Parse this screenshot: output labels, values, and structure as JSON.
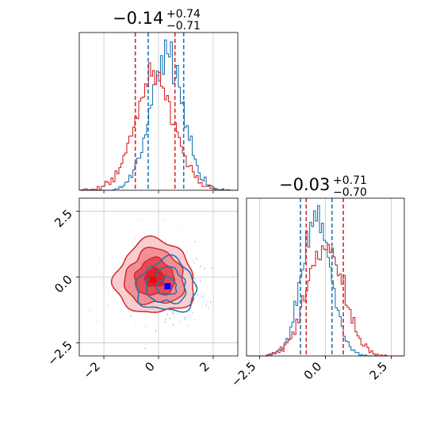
{
  "figure": {
    "type": "corner-plot",
    "colors": {
      "series_a": "#1f77b4",
      "series_b": "#d62728",
      "truth": "#0000ff",
      "truth_b": "#ff0000"
    }
  },
  "chart_data": [
    {
      "type": "histogram",
      "panel": "param-1-marginal",
      "title": {
        "median": "−0.14",
        "upper": "+0.74",
        "lower": "−0.71"
      },
      "xlim": [
        -2.9,
        2.9
      ],
      "xticks": [
        -2,
        0,
        2
      ],
      "tick_labels_shown": false,
      "grid": true,
      "series": [
        {
          "color": "#1f77b4",
          "mean": 0.3,
          "sd": 0.6,
          "quantile_lines": [
            -0.38,
            0.92
          ]
        },
        {
          "color": "#d62728",
          "mean": -0.14,
          "sd": 0.72,
          "quantile_lines": [
            -0.85,
            0.6
          ]
        }
      ]
    },
    {
      "type": "histogram",
      "panel": "param-2-marginal",
      "title": {
        "median": "−0.03",
        "upper": "+0.71",
        "lower": "−0.70"
      },
      "xlim": [
        -3.0,
        3.0
      ],
      "xticks": [
        -2.5,
        0.0,
        2.5
      ],
      "xtick_labels": [
        "−2.5",
        "0.0",
        "2.5"
      ],
      "grid": true,
      "series": [
        {
          "color": "#1f77b4",
          "mean": -0.35,
          "sd": 0.55,
          "quantile_lines": [
            -0.95,
            0.25
          ]
        },
        {
          "color": "#d62728",
          "mean": -0.03,
          "sd": 0.7,
          "quantile_lines": [
            -0.73,
            0.68
          ]
        }
      ]
    },
    {
      "type": "contour",
      "panel": "param-1-vs-param-2",
      "xlim": [
        -2.9,
        2.9
      ],
      "ylim": [
        -3.0,
        3.0
      ],
      "xticks": [
        -2,
        0,
        2
      ],
      "xtick_labels": [
        "−2",
        "0",
        "2"
      ],
      "yticks": [
        -2.5,
        0.0,
        2.5
      ],
      "ytick_labels": [
        "−2.5",
        "0.0",
        "2.5"
      ],
      "grid": true,
      "series": [
        {
          "color": "#d62728",
          "filled": true,
          "center": [
            -0.14,
            -0.03
          ],
          "spread": [
            0.72,
            0.7
          ],
          "levels": [
            0.5,
            1.0,
            1.5,
            2.0
          ]
        },
        {
          "color": "#1f77b4",
          "filled": false,
          "center": [
            0.3,
            -0.35
          ],
          "spread": [
            0.6,
            0.55
          ],
          "levels": [
            0.6,
            1.2,
            1.8
          ]
        }
      ],
      "markers": [
        {
          "x": 0.33,
          "y": -0.35,
          "color": "#0000ff"
        },
        {
          "x": -0.2,
          "y": -0.1,
          "color": "#ff0000"
        }
      ]
    }
  ]
}
